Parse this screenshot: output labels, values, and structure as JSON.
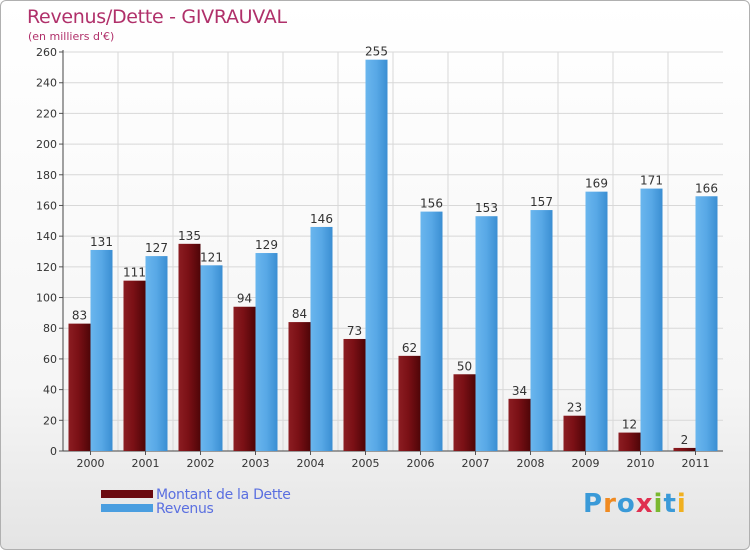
{
  "title": "Revenus/Dette - GIVRAUVAL",
  "subtitle": "(en milliers d'€)",
  "colors": {
    "title": "#b0306a",
    "dette": "#6b0a0f",
    "revenus": "#4a9ee0",
    "legend_text": "#5a6fe0"
  },
  "legend": [
    {
      "label": "Montant de la Dette",
      "color": "#6b0a0f"
    },
    {
      "label": "Revenus",
      "color": "#4a9ee0"
    }
  ],
  "logo": {
    "letters": [
      "P",
      "r",
      "o",
      "x",
      "i",
      "t",
      "i"
    ],
    "colors": [
      "#3a9ad8",
      "#f08a20",
      "#3a9ad8",
      "#e03050",
      "#7ab830",
      "#3a9ad8",
      "#f0b020"
    ]
  },
  "chart_data": {
    "type": "bar",
    "categories": [
      "2000",
      "2001",
      "2002",
      "2003",
      "2004",
      "2005",
      "2006",
      "2007",
      "2008",
      "2009",
      "2010",
      "2011"
    ],
    "series": [
      {
        "name": "Montant de la Dette",
        "values": [
          83,
          111,
          135,
          94,
          84,
          73,
          62,
          50,
          34,
          23,
          12,
          2
        ]
      },
      {
        "name": "Revenus",
        "values": [
          131,
          127,
          121,
          129,
          146,
          255,
          156,
          153,
          157,
          169,
          171,
          166
        ]
      }
    ],
    "yticks": [
      0,
      20,
      40,
      60,
      80,
      100,
      120,
      140,
      160,
      180,
      200,
      220,
      240,
      260
    ],
    "ylim": [
      0,
      260
    ],
    "grid": true
  }
}
